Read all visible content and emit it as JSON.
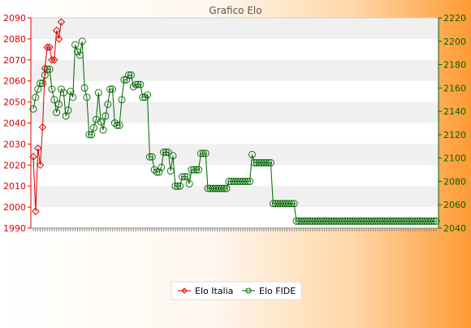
{
  "chart_data": {
    "type": "line",
    "title": "Grafico Elo",
    "xlabel": "",
    "ylabel": "",
    "y_left_range": [
      1990,
      2090
    ],
    "y_left_ticks": [
      1990,
      2000,
      2010,
      2020,
      2030,
      2040,
      2050,
      2060,
      2070,
      2080,
      2090
    ],
    "y_right_range": [
      2040,
      2220
    ],
    "y_right_ticks": [
      2040,
      2060,
      2080,
      2100,
      2120,
      2140,
      2160,
      2180,
      2200,
      2220
    ],
    "grid": "horizontal bands",
    "legend_position": "bottom-center",
    "x_tick_labels_rotated": true,
    "series": [
      {
        "name": "Elo Italia",
        "axis": "left",
        "color": "#dd0000",
        "marker": "diamond",
        "values": [
          2024,
          1998,
          2028,
          2020,
          2038,
          2066,
          2076,
          2076,
          2070,
          2070,
          2084,
          2080,
          2088
        ]
      },
      {
        "name": "Elo FIDE",
        "axis": "right",
        "color": "#006600",
        "marker": "circle",
        "values": [
          2142,
          2152,
          2159,
          2164,
          2164,
          2171,
          2176,
          2176,
          2159,
          2150,
          2139,
          2146,
          2159,
          2156,
          2136,
          2141,
          2157,
          2152,
          2197,
          2191,
          2188,
          2200,
          2160,
          2152,
          2120,
          2120,
          2126,
          2133,
          2156,
          2131,
          2124,
          2136,
          2146,
          2159,
          2159,
          2130,
          2128,
          2128,
          2150,
          2167,
          2167,
          2171,
          2171,
          2161,
          2163,
          2163,
          2163,
          2152,
          2152,
          2154,
          2101,
          2101,
          2090,
          2088,
          2088,
          2092,
          2105,
          2105,
          2105,
          2089,
          2102,
          2076,
          2076,
          2076,
          2084,
          2084,
          2084,
          2078,
          2090,
          2090,
          2090,
          2090,
          2104,
          2104,
          2104,
          2074,
          2074,
          2074,
          2074,
          2074,
          2074,
          2074,
          2074,
          2074,
          2080,
          2080,
          2080,
          2080,
          2080,
          2080,
          2080,
          2080,
          2080,
          2080,
          2103,
          2096,
          2096,
          2096,
          2096,
          2096,
          2096,
          2096,
          2096,
          2061,
          2061,
          2061,
          2061,
          2061,
          2061,
          2061,
          2061,
          2061,
          2061,
          2046,
          2046,
          2046,
          2046,
          2046,
          2046,
          2046,
          2046,
          2046,
          2046,
          2046,
          2046,
          2046,
          2046,
          2046,
          2046,
          2046,
          2046,
          2046,
          2046,
          2046,
          2046,
          2046,
          2046,
          2046,
          2046,
          2046,
          2046,
          2046,
          2046,
          2046,
          2046,
          2046,
          2046,
          2046,
          2046,
          2046,
          2046,
          2046,
          2046,
          2046,
          2046,
          2046,
          2046,
          2046,
          2046,
          2046,
          2046,
          2046,
          2046,
          2046,
          2046,
          2046,
          2046,
          2046,
          2046,
          2046,
          2046,
          2046,
          2046,
          2046
        ]
      }
    ]
  },
  "legend": {
    "italia": "Elo Italia",
    "fide": "Elo FIDE"
  }
}
